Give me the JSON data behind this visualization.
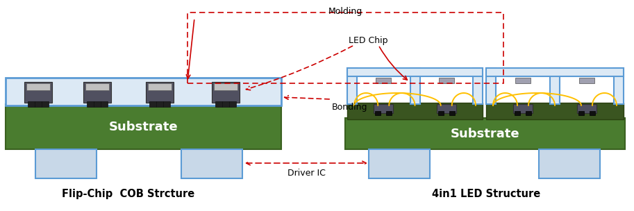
{
  "fig_width": 9.13,
  "fig_height": 3.04,
  "dpi": 100,
  "bg_color": "#ffffff",
  "substrate_color": "#4a7c2f",
  "substrate_dark": "#3a6020",
  "led_board_color": "#3a5520",
  "blue_frame_color": "#5b9bd5",
  "blue_frame_fill": "#dce9f5",
  "connector_color": "#c8d8e8",
  "connector_outline": "#5b9bd5",
  "wire_color": "#ffc000",
  "annotation_color": "#cc0000",
  "text_color": "#000000",
  "label_flipchip": "Flip-Chip  COB Strcture",
  "label_4in1": "4in1 LED Structure",
  "label_molding": "Molding",
  "label_led_chip": "LED Chip",
  "label_bonding": "Bonding",
  "label_driver_ic": "Driver IC",
  "label_substrate": "Substrate"
}
